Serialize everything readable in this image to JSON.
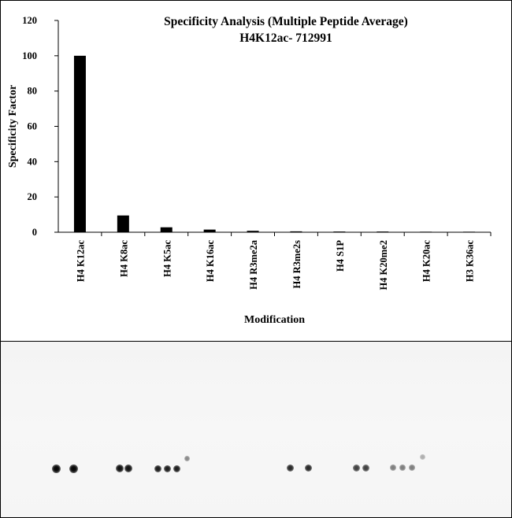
{
  "chart_data": {
    "type": "bar",
    "title": "Specificity Analysis (Multiple Peptide Average)",
    "subtitle": "H4K12ac- 712991",
    "xlabel": "Modification",
    "ylabel": "Specificity Factor",
    "ylim": [
      0,
      120
    ],
    "yticks": [
      0,
      20,
      40,
      60,
      80,
      100,
      120
    ],
    "categories": [
      "H4 K12ac",
      "H4 K8ac",
      "H4 K5ac",
      "H4 K16ac",
      "H4 R3me2a",
      "H4 R3me2s",
      "H4 S1P",
      "H4 K20me2",
      "H4 K20ac",
      "H3 K36ac"
    ],
    "values": [
      100,
      9.5,
      2.8,
      1.5,
      0.8,
      0.5,
      0.4,
      0.4,
      0.3,
      0.3
    ],
    "grid": false,
    "legend": "none",
    "bar_color": "#000000"
  },
  "blot": {
    "description_icon": "dot-blot-image",
    "groups": [
      {
        "spots": [
          1.0,
          1.0
        ]
      },
      {
        "spots": [
          0.95,
          0.95
        ]
      },
      {
        "spots": [
          0.9,
          0.9,
          0.9,
          0.45
        ]
      },
      {
        "spots": [
          0.85,
          0.85
        ]
      },
      {
        "spots": [
          0.75,
          0.75
        ]
      },
      {
        "spots": [
          0.5,
          0.5,
          0.5,
          0.3
        ]
      }
    ]
  }
}
